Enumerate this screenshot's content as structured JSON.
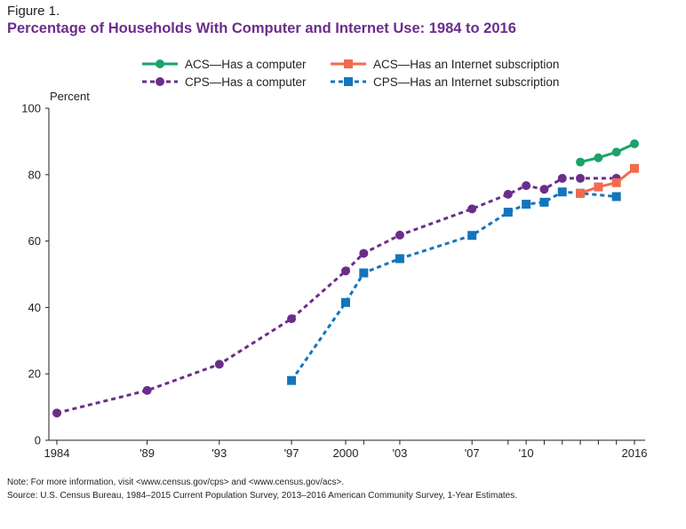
{
  "figure_label": "Figure 1.",
  "title": "Percentage of Households With Computer and Internet Use: 1984 to 2016",
  "note": "Note: For more information, visit <www.census.gov/cps> and <www.census.gov/acs>.",
  "source": "Source: U.S. Census Bureau, 1984–2015 Current Population Survey, 2013–2016 American Community Survey, 1-Year Estimates.",
  "colors": {
    "acs_computer": "#1aa36b",
    "acs_internet": "#f26b4f",
    "cps_computer": "#6b2d8b",
    "cps_internet": "#1475bc",
    "axis": "#231f20"
  },
  "chart_data": {
    "type": "line",
    "ylabel": "Percent",
    "ylim": [
      0,
      100
    ],
    "yticks": [
      0,
      20,
      40,
      60,
      80,
      100
    ],
    "xlim": [
      1984,
      2016
    ],
    "x_ticks": [
      {
        "x": 1984,
        "label": "1984"
      },
      {
        "x": 1989,
        "label": "'89"
      },
      {
        "x": 1993,
        "label": "'93"
      },
      {
        "x": 1997,
        "label": "'97"
      },
      {
        "x": 2000,
        "label": "2000"
      },
      {
        "x": 2003,
        "label": "'03"
      },
      {
        "x": 2007,
        "label": "'07"
      },
      {
        "x": 2010,
        "label": "'10"
      },
      {
        "x": 2016,
        "label": "2016"
      }
    ],
    "x_minor_ticks": [
      2001,
      2009,
      2011,
      2012,
      2013,
      2014,
      2015
    ],
    "legend_position": "top",
    "series": [
      {
        "name": "ACS—Has a computer",
        "key": "acs_computer",
        "marker": "circle",
        "dash": false,
        "points": [
          [
            2013,
            83.8
          ],
          [
            2014,
            85.1
          ],
          [
            2015,
            86.8
          ],
          [
            2016,
            89.3
          ]
        ]
      },
      {
        "name": "ACS—Has an Internet subscription",
        "key": "acs_internet",
        "marker": "square",
        "dash": false,
        "points": [
          [
            2013,
            74.4
          ],
          [
            2014,
            76.3
          ],
          [
            2015,
            77.6
          ],
          [
            2016,
            81.9
          ]
        ]
      },
      {
        "name": "CPS—Has a computer",
        "key": "cps_computer",
        "marker": "circle",
        "dash": true,
        "points": [
          [
            1984,
            8.2
          ],
          [
            1989,
            15.0
          ],
          [
            1993,
            22.9
          ],
          [
            1997,
            36.6
          ],
          [
            2000,
            51.0
          ],
          [
            2001,
            56.3
          ],
          [
            2003,
            61.8
          ],
          [
            2007,
            69.7
          ],
          [
            2009,
            74.1
          ],
          [
            2010,
            76.7
          ],
          [
            2011,
            75.6
          ],
          [
            2012,
            78.9
          ],
          [
            2013,
            78.9
          ],
          [
            2015,
            78.9
          ]
        ]
      },
      {
        "name": "CPS—Has an Internet subscription",
        "key": "cps_internet",
        "marker": "square",
        "dash": true,
        "points": [
          [
            1997,
            18.0
          ],
          [
            2000,
            41.5
          ],
          [
            2001,
            50.4
          ],
          [
            2003,
            54.7
          ],
          [
            2007,
            61.7
          ],
          [
            2009,
            68.7
          ],
          [
            2010,
            71.1
          ],
          [
            2011,
            71.7
          ],
          [
            2012,
            74.8
          ],
          [
            2013,
            74.4
          ],
          [
            2015,
            73.4
          ]
        ]
      }
    ]
  }
}
